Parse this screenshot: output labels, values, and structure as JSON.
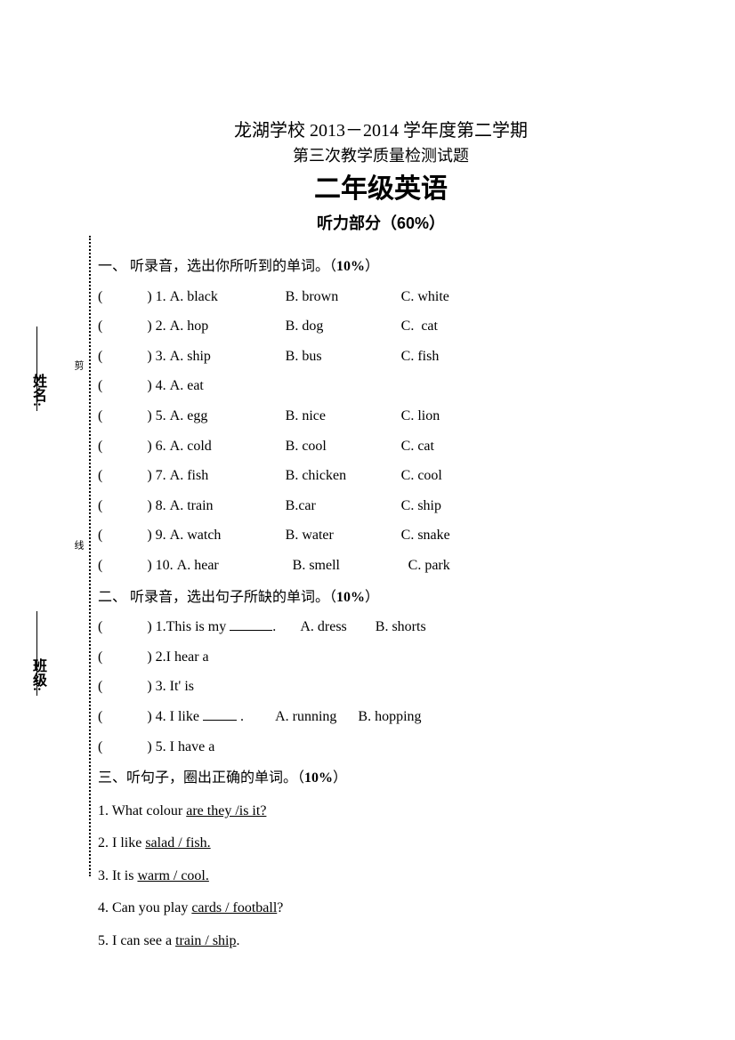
{
  "sidebar": {
    "name_label": "姓名:",
    "class_label": "班级:",
    "cut_mark1": "剪",
    "cut_mark2": "线"
  },
  "header": {
    "line1": "龙湖学校 2013－2014 学年度第二学期",
    "line2": "第三次教学质量检测试题",
    "main": "二年级英语",
    "subtitle": "听力部分（60%）"
  },
  "section1": {
    "title_prefix": "一、  听录音，选出你所听到的单词。（",
    "pct": "10%",
    "title_suffix": "）",
    "rows": [
      {
        "n": "1",
        "a": "A. black",
        "b": "B. brown",
        "c": "C. white"
      },
      {
        "n": "2",
        "a": "A. hop",
        "b": "B. dog",
        "c": "C.  cat"
      },
      {
        "n": "3",
        "a": "A. ship",
        "b": "B. bus",
        "c": "C. fish"
      },
      {
        "n": "4",
        "a": "A. eat",
        "b": "",
        "c": ""
      },
      {
        "n": "5",
        "a": "A. egg",
        "b": "B. nice",
        "c": "C. lion"
      },
      {
        "n": "6",
        "a": "A. cold",
        "b": "B. cool",
        "c": "C. cat"
      },
      {
        "n": "7",
        "a": "A. fish",
        "b": "B. chicken",
        "c": "C. cool"
      },
      {
        "n": "8",
        "a": "A. train",
        "b": "B.car",
        "c": "C. ship"
      },
      {
        "n": "9",
        "a": "A. watch",
        "b": "B. water",
        "c": "C. snake"
      },
      {
        "n": "10",
        "a": "A. hear",
        "b": "B. smell",
        "c": "C. park"
      }
    ]
  },
  "section2": {
    "title_prefix": "二、  听录音，选出句子所缺的单词。（",
    "pct": "10%",
    "title_suffix": "）",
    "q1_pre": ") 1.This is my ",
    "q1_opts": ".       A. dress        B. shorts",
    "q2": ") 2.I hear a",
    "q3": ") 3. It' is",
    "q4_pre": ") 4. I like ",
    "q4_opts": " .         A. running      B. hopping",
    "q5": ") 5. I have a"
  },
  "section3": {
    "title_prefix": "三、听句子，圈出正确的单词。（",
    "pct": "10%",
    "title_suffix": "）",
    "q1_pre": "1. What colour ",
    "q1_u": "are they /is it?",
    "q2_pre": "2. I like ",
    "q2_u": "salad / fish.",
    "q3_pre": "3. It is ",
    "q3_u": "warm / cool.",
    "q4_pre": "4. Can you play ",
    "q4_u": "cards / football",
    "q4_post": "?",
    "q5_pre": "5. I can see a ",
    "q5_u": "train / ship",
    "q5_post": "."
  }
}
